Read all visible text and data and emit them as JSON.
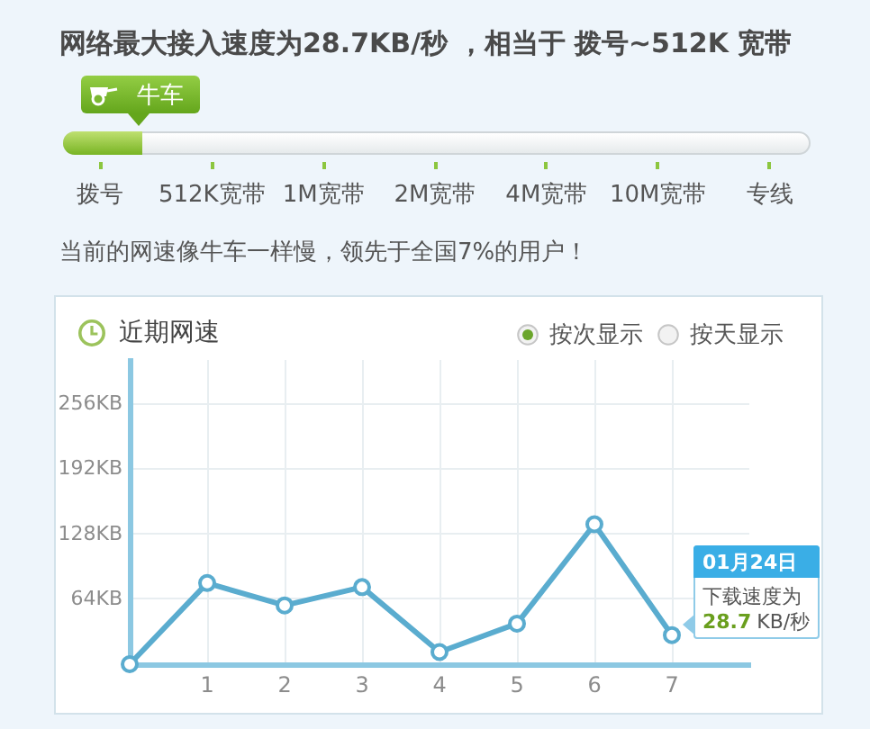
{
  "chart_data": [
    {
      "type": "other",
      "title": "网络最大接入速度为28.7KB/秒 ，相当于 拨号~512K 宽带",
      "categories": [
        "拨号",
        "512K宽带",
        "1M宽带",
        "2M宽带",
        "4M宽带",
        "10M宽带",
        "专线"
      ],
      "annotations": [
        "牛车",
        "当前的网速像牛车一样慢，领先于全国7%的用户！"
      ]
    },
    {
      "type": "line",
      "title": "近期网速",
      "x": [
        0,
        1,
        2,
        3,
        4,
        5,
        6,
        7
      ],
      "values": [
        0,
        80,
        58,
        76,
        12,
        40,
        138,
        28.7
      ],
      "color": "#5aaccf",
      "xlim": [
        0,
        8
      ],
      "xticks": [
        1,
        2,
        3,
        4,
        5,
        6,
        7
      ],
      "ylim": [
        0,
        300
      ],
      "yticks": [
        {
          "value": 64,
          "label": "64KB"
        },
        {
          "value": 128,
          "label": "128KB"
        },
        {
          "value": 192,
          "label": "192KB"
        },
        {
          "value": 256,
          "label": "256KB"
        }
      ],
      "grid": true,
      "marker": "circle",
      "value_labels": [
        null,
        null,
        null,
        null,
        null,
        null,
        null,
        "28.7"
      ],
      "annotations": [
        "01月24日",
        "下载速度为",
        "KB/秒",
        "按次显示",
        "按天显示"
      ]
    }
  ]
}
